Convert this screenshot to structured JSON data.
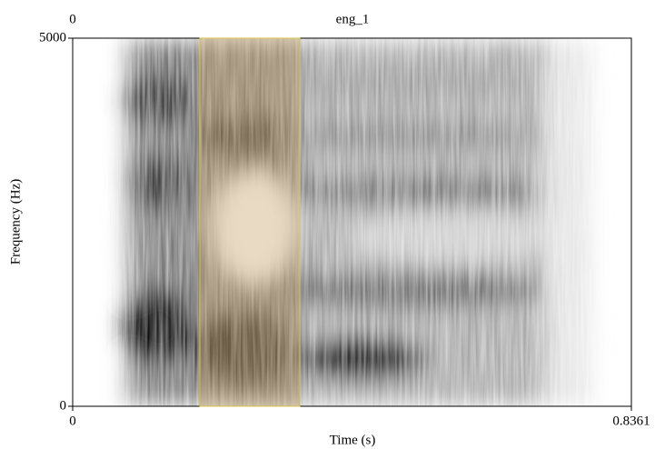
{
  "chart_data": {
    "type": "spectrogram",
    "title": "eng_1",
    "annotations": [
      "0"
    ],
    "x_label": "Time (s)",
    "y_label": "Frequency (Hz)",
    "xlim": [
      0,
      0.8361
    ],
    "xticks": [
      0,
      0.8361
    ],
    "ylim": [
      0,
      5000
    ],
    "yticks": [
      0,
      5000
    ],
    "selection": [
      0.1903,
      0.3399
    ],
    "selection_color": "#c9a56a"
  }
}
